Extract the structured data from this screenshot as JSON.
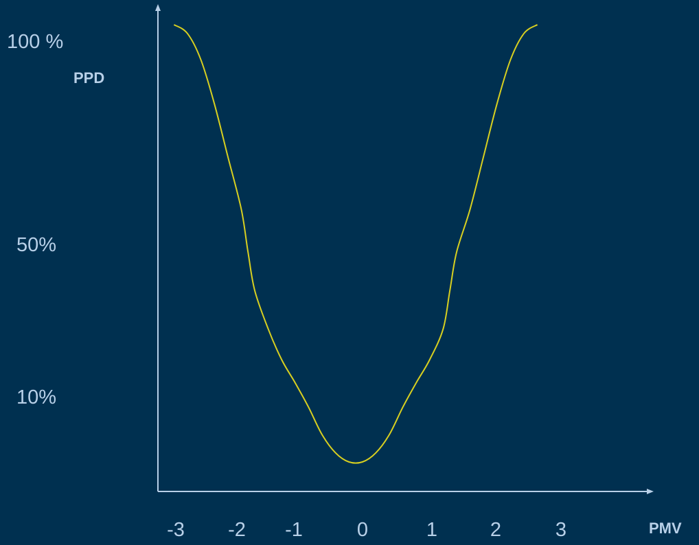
{
  "chart_data": {
    "type": "line",
    "xlabel": "PMV",
    "ylabel": "PPD",
    "x_ticks": [
      "-3",
      "-2",
      "-1",
      "0",
      "1",
      "2",
      "3"
    ],
    "y_ticks": [
      "10%",
      "50%",
      "100 %"
    ],
    "series": [
      {
        "color": "#d8d020",
        "x": [
          -2.7,
          -2.5,
          -2.3,
          -2.1,
          -1.9,
          -1.7,
          -1.6,
          -1.5,
          -1.3,
          -1.1,
          -0.9,
          -0.7,
          -0.5,
          -0.3,
          -0.1,
          0.1,
          0.3,
          0.5,
          0.7,
          0.9,
          1.1,
          1.3,
          1.4,
          1.5,
          1.7,
          1.9,
          2.1,
          2.3,
          2.5,
          2.7
        ],
        "y": [
          100,
          98,
          92,
          82,
          70,
          58,
          48,
          38,
          28,
          20,
          14,
          9,
          6,
          4,
          3,
          3,
          4,
          6,
          9,
          14,
          20,
          28,
          38,
          48,
          58,
          70,
          82,
          92,
          98,
          100
        ]
      }
    ]
  },
  "colors": {
    "background": "#003050",
    "axis": "#b8d0e8",
    "curve": "#d8d020",
    "text": "#b8d0e8"
  }
}
